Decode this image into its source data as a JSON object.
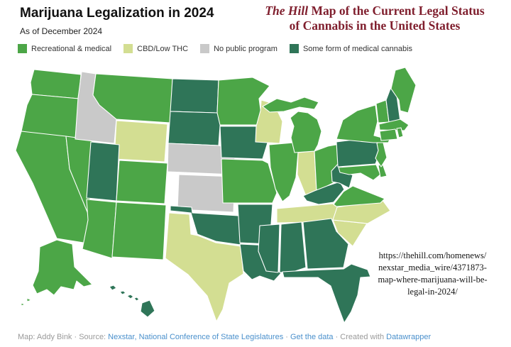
{
  "header": {
    "title": "Marijuana Legalization in 2024",
    "subtitle": "As of December 2024"
  },
  "overlay_heading": {
    "line1_italic": "The Hill",
    "line1_rest": " Map of the Current Legal Status",
    "line2": "of Cannabis in the United States",
    "color": "#7f1e2d"
  },
  "legend": {
    "items": [
      {
        "key": "recreational",
        "label": "Recreational & medical",
        "color": "#4ca647"
      },
      {
        "key": "cbd",
        "label": "CBD/Low THC",
        "color": "#d3de92"
      },
      {
        "key": "none",
        "label": "No public program",
        "color": "#c9c9c9"
      },
      {
        "key": "medical",
        "label": "Some form of medical cannabis",
        "color": "#2f7558"
      }
    ]
  },
  "map": {
    "states": [
      {
        "id": "WA",
        "name": "Washington",
        "status": "recreational"
      },
      {
        "id": "OR",
        "name": "Oregon",
        "status": "recreational"
      },
      {
        "id": "CA",
        "name": "California",
        "status": "recreational"
      },
      {
        "id": "NV",
        "name": "Nevada",
        "status": "recreational"
      },
      {
        "id": "ID",
        "name": "Idaho",
        "status": "none"
      },
      {
        "id": "MT",
        "name": "Montana",
        "status": "recreational"
      },
      {
        "id": "WY",
        "name": "Wyoming",
        "status": "cbd"
      },
      {
        "id": "UT",
        "name": "Utah",
        "status": "medical"
      },
      {
        "id": "CO",
        "name": "Colorado",
        "status": "recreational"
      },
      {
        "id": "AZ",
        "name": "Arizona",
        "status": "recreational"
      },
      {
        "id": "NM",
        "name": "New Mexico",
        "status": "recreational"
      },
      {
        "id": "ND",
        "name": "North Dakota",
        "status": "medical"
      },
      {
        "id": "SD",
        "name": "South Dakota",
        "status": "medical"
      },
      {
        "id": "NE",
        "name": "Nebraska",
        "status": "none"
      },
      {
        "id": "KS",
        "name": "Kansas",
        "status": "none"
      },
      {
        "id": "OK",
        "name": "Oklahoma",
        "status": "medical"
      },
      {
        "id": "TX",
        "name": "Texas",
        "status": "cbd"
      },
      {
        "id": "MN",
        "name": "Minnesota",
        "status": "recreational"
      },
      {
        "id": "IA",
        "name": "Iowa",
        "status": "medical"
      },
      {
        "id": "MO",
        "name": "Missouri",
        "status": "recreational"
      },
      {
        "id": "AR",
        "name": "Arkansas",
        "status": "medical"
      },
      {
        "id": "LA",
        "name": "Louisiana",
        "status": "medical"
      },
      {
        "id": "WI",
        "name": "Wisconsin",
        "status": "cbd"
      },
      {
        "id": "IL",
        "name": "Illinois",
        "status": "recreational"
      },
      {
        "id": "IN",
        "name": "Indiana",
        "status": "cbd"
      },
      {
        "id": "OH",
        "name": "Ohio",
        "status": "recreational"
      },
      {
        "id": "MI",
        "name": "Michigan",
        "status": "recreational"
      },
      {
        "id": "KY",
        "name": "Kentucky",
        "status": "medical"
      },
      {
        "id": "TN",
        "name": "Tennessee",
        "status": "cbd"
      },
      {
        "id": "MS",
        "name": "Mississippi",
        "status": "medical"
      },
      {
        "id": "AL",
        "name": "Alabama",
        "status": "medical"
      },
      {
        "id": "GA",
        "name": "Georgia",
        "status": "medical"
      },
      {
        "id": "FL",
        "name": "Florida",
        "status": "medical"
      },
      {
        "id": "SC",
        "name": "South Carolina",
        "status": "cbd"
      },
      {
        "id": "NC",
        "name": "North Carolina",
        "status": "cbd"
      },
      {
        "id": "VA",
        "name": "Virginia",
        "status": "recreational"
      },
      {
        "id": "WV",
        "name": "West Virginia",
        "status": "medical"
      },
      {
        "id": "MD",
        "name": "Maryland",
        "status": "recreational"
      },
      {
        "id": "DE",
        "name": "Delaware",
        "status": "recreational"
      },
      {
        "id": "PA",
        "name": "Pennsylvania",
        "status": "medical"
      },
      {
        "id": "NJ",
        "name": "New Jersey",
        "status": "recreational"
      },
      {
        "id": "NY",
        "name": "New York",
        "status": "recreational"
      },
      {
        "id": "VT",
        "name": "Vermont",
        "status": "recreational"
      },
      {
        "id": "NH",
        "name": "New Hampshire",
        "status": "medical"
      },
      {
        "id": "ME",
        "name": "Maine",
        "status": "recreational"
      },
      {
        "id": "MA",
        "name": "Massachusetts",
        "status": "recreational"
      },
      {
        "id": "CT",
        "name": "Connecticut",
        "status": "recreational"
      },
      {
        "id": "RI",
        "name": "Rhode Island",
        "status": "recreational"
      },
      {
        "id": "AK",
        "name": "Alaska",
        "status": "recreational"
      },
      {
        "id": "HI",
        "name": "Hawaii",
        "status": "medical"
      }
    ]
  },
  "url_note": {
    "lines": [
      "https://thehill.com/homenews/",
      "nexstar_media_wire/4371873-",
      "map-where-marijuana-will-be-",
      "legal-in-2024/"
    ]
  },
  "footer": {
    "prefix": "Map: Addy Bink · Source: ",
    "source_link": "Nexstar, National Conference of State Legislatures",
    "sep1": " · ",
    "data_link": "Get the data",
    "sep2": " · Created with ",
    "tool_link": "Datawrapper"
  }
}
